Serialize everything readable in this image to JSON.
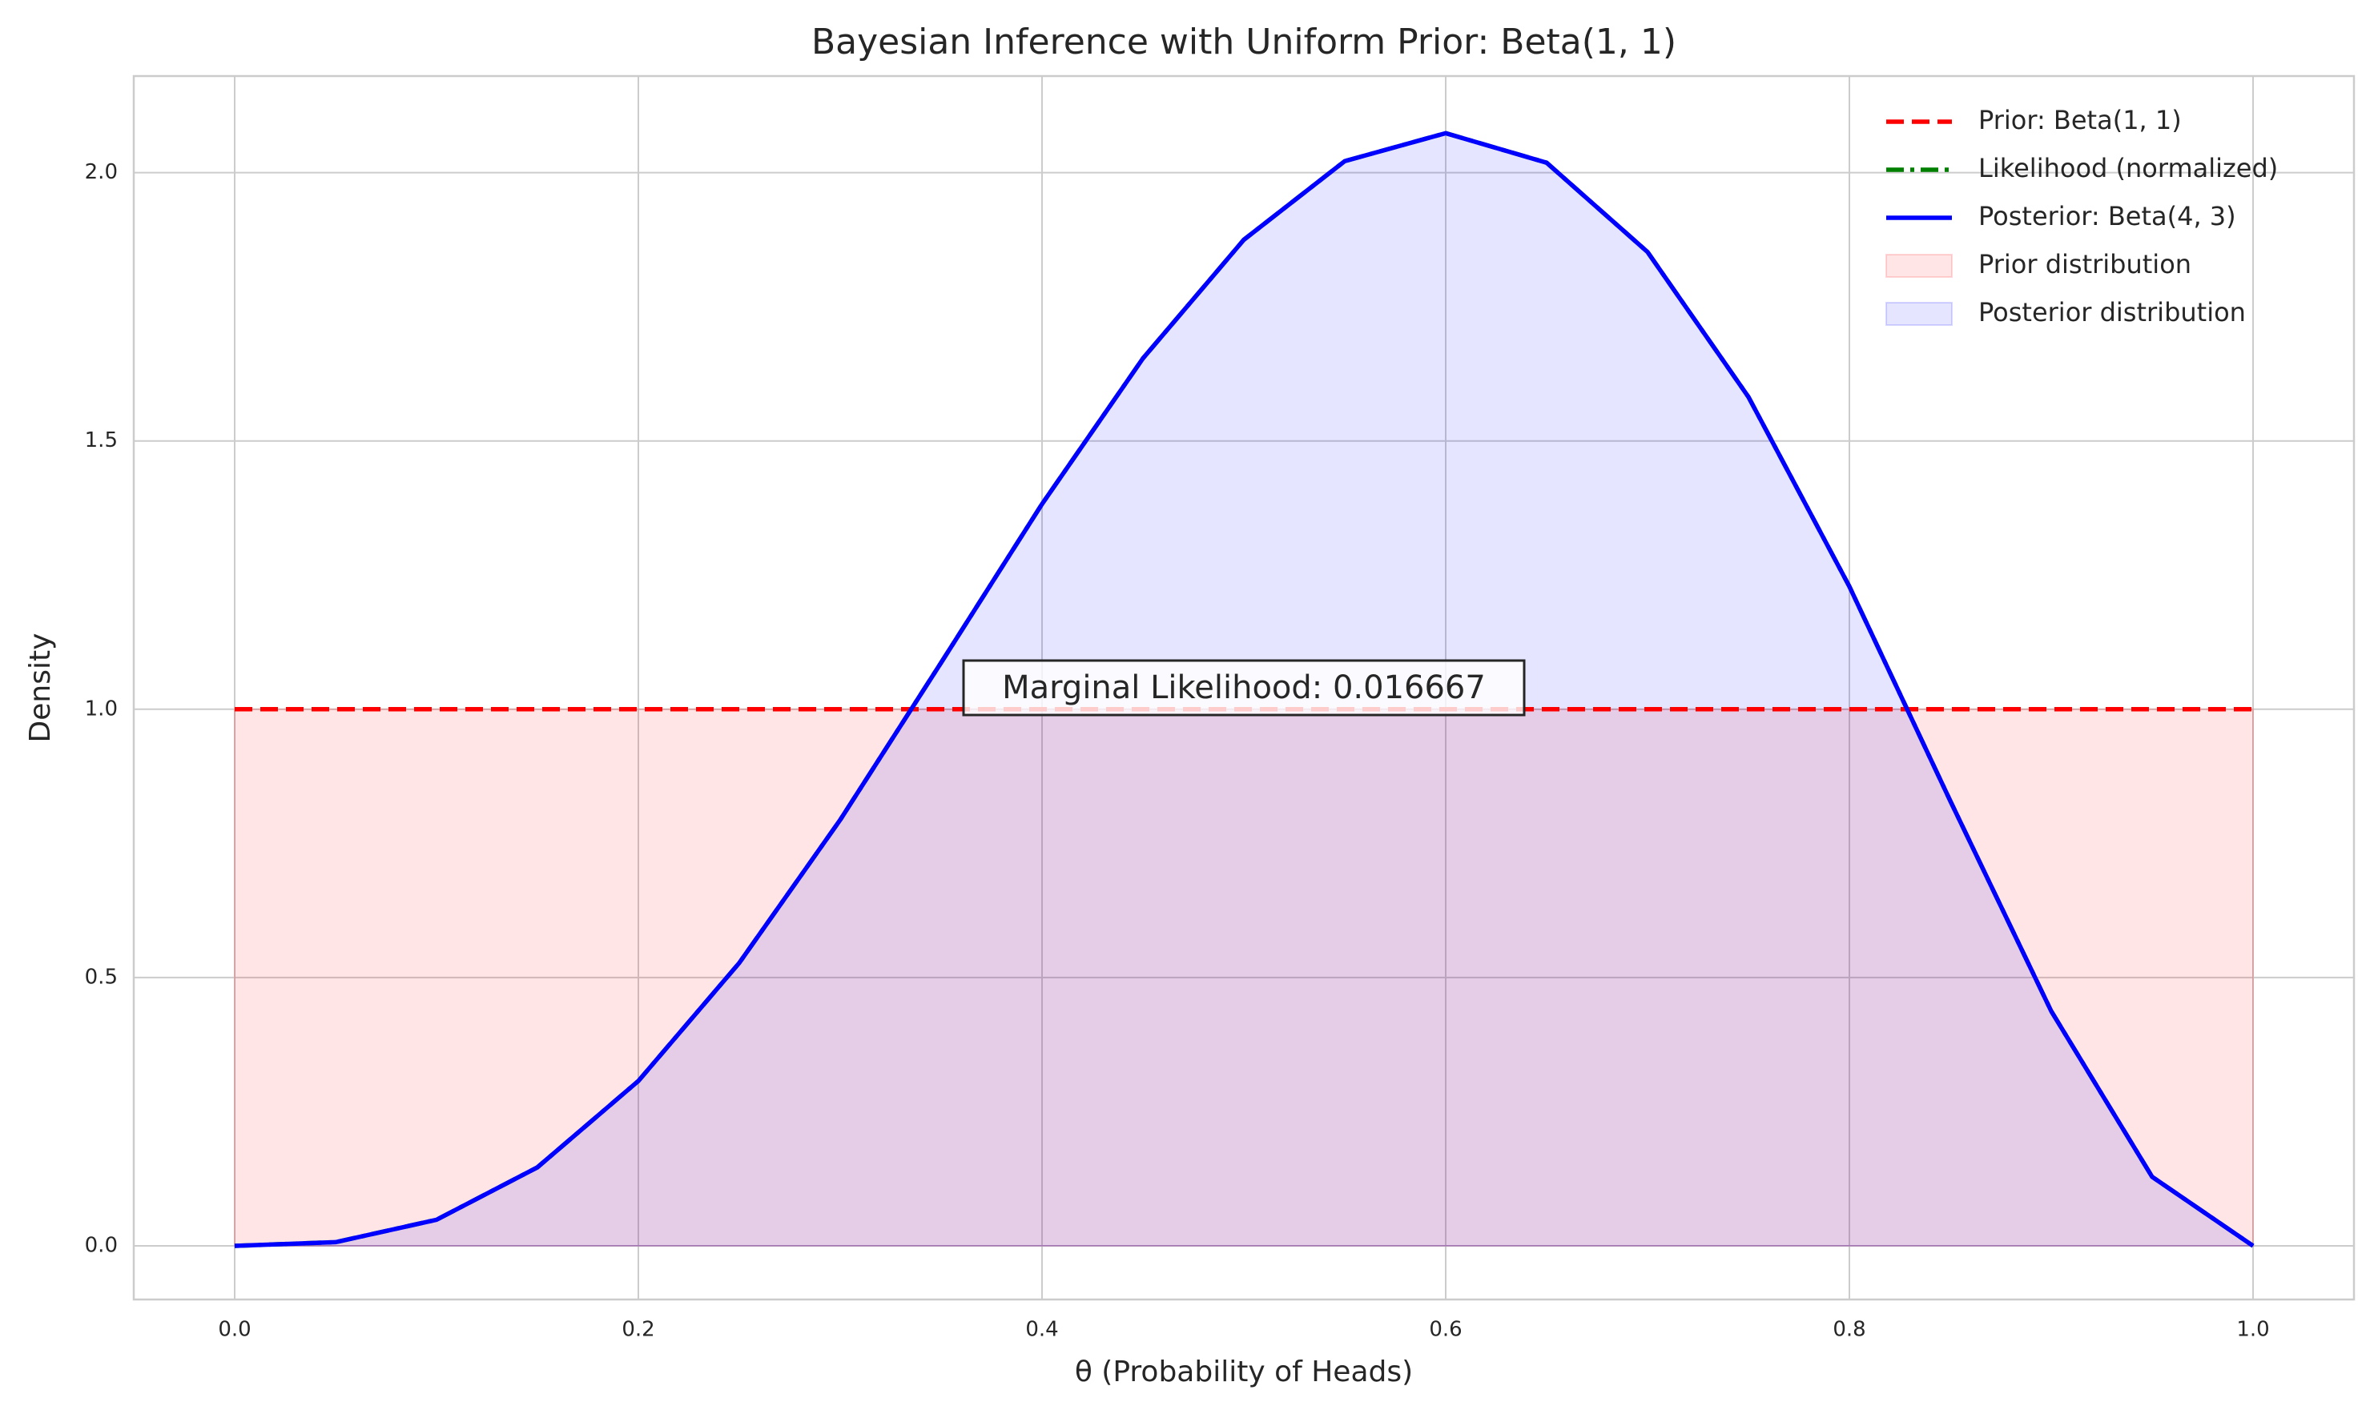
{
  "chart_data": {
    "type": "line",
    "title": "Bayesian Inference with Uniform Prior: Beta(1, 1)",
    "x_label": "θ (Probability of Heads)",
    "y_label": "Density",
    "annotation": "Marginal Likelihood: 0.016667",
    "x": [
      0,
      0.05,
      0.1,
      0.15,
      0.2,
      0.25,
      0.3,
      0.35,
      0.4,
      0.45,
      0.5,
      0.55,
      0.6,
      0.65,
      0.7,
      0.75,
      0.8,
      0.85,
      0.9,
      0.95,
      1
    ],
    "series": [
      {
        "name": "Prior: Beta(1, 1)",
        "color": "#ff0000",
        "style": "dashed",
        "values": [
          1,
          1,
          1,
          1,
          1,
          1,
          1,
          1,
          1,
          1,
          1,
          1,
          1,
          1,
          1,
          1,
          1,
          1,
          1,
          1,
          1
        ]
      },
      {
        "name": "Likelihood (normalized)",
        "color": "#008000",
        "style": "dashdot",
        "values": [
          0,
          0.0068,
          0.0486,
          0.1463,
          0.3072,
          0.5273,
          0.7938,
          1.0869,
          1.3824,
          1.6539,
          1.875,
          2.0215,
          2.0736,
          2.0185,
          1.8522,
          1.582,
          1.2288,
          0.8291,
          0.4374,
          0.1286,
          0
        ]
      },
      {
        "name": "Posterior: Beta(4, 3)",
        "color": "#0000ff",
        "style": "solid",
        "values": [
          0,
          0.0068,
          0.0486,
          0.1463,
          0.3072,
          0.5273,
          0.7938,
          1.0869,
          1.3824,
          1.6539,
          1.875,
          2.0215,
          2.0736,
          2.0185,
          1.8522,
          1.582,
          1.2288,
          0.8291,
          0.4374,
          0.1286,
          0
        ]
      },
      {
        "name": "Prior distribution",
        "color": "#ff0000",
        "style": "fill",
        "values": [
          1,
          1,
          1,
          1,
          1,
          1,
          1,
          1,
          1,
          1,
          1,
          1,
          1,
          1,
          1,
          1,
          1,
          1,
          1,
          1,
          1
        ]
      },
      {
        "name": "Posterior distribution",
        "color": "#0000ff",
        "style": "fill",
        "values": [
          0,
          0.0068,
          0.0486,
          0.1463,
          0.3072,
          0.5273,
          0.7938,
          1.0869,
          1.3824,
          1.6539,
          1.875,
          2.0215,
          2.0736,
          2.0185,
          1.8522,
          1.582,
          1.2288,
          0.8291,
          0.4374,
          0.1286,
          0
        ]
      }
    ],
    "xlim": [
      -0.05,
      1.05
    ],
    "ylim": [
      -0.1,
      2.18
    ],
    "xticks": [
      {
        "value": 0,
        "label": "0.0"
      },
      0.2,
      0.4,
      0.6,
      0.8,
      {
        "value": 1,
        "label": "1.0"
      }
    ],
    "yticks": [
      {
        "value": 0,
        "label": "0.0"
      },
      0.5,
      {
        "value": 1,
        "label": "1.0"
      },
      1.5,
      {
        "value": 2,
        "label": "2.0"
      }
    ],
    "grid": true,
    "legend": "upper right"
  }
}
